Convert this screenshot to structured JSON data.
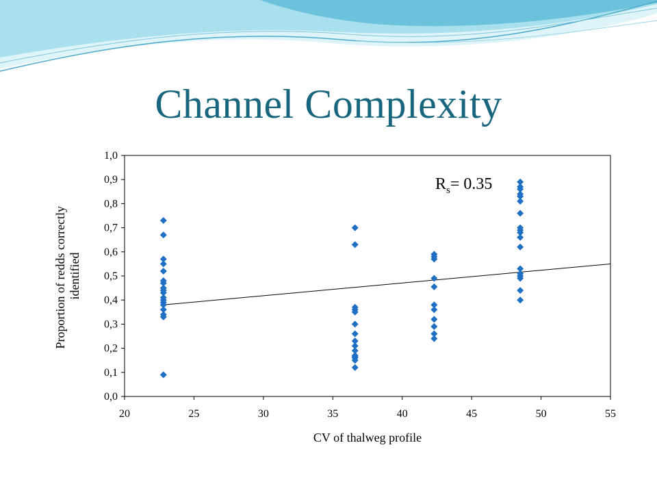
{
  "slide": {
    "title": "Channel Complexity"
  },
  "colors": {
    "title": "#17667e",
    "marker": "#1f6fc5",
    "wave_light": "#cfeef5",
    "wave_mid": "#8fd3e6",
    "wave_dark": "#4aa9c9"
  },
  "chart_data": {
    "type": "scatter",
    "xlabel": "CV of thalweg profile",
    "ylabel": "Proportion of redds correctly identified",
    "xlim": [
      20,
      55
    ],
    "ylim": [
      0,
      1
    ],
    "x_ticks": [
      "20",
      "25",
      "30",
      "35",
      "40",
      "45",
      "50",
      "55"
    ],
    "y_ticks": [
      "0,0",
      "0,1",
      "0,2",
      "0,3",
      "0,4",
      "0,5",
      "0,6",
      "0,7",
      "0,8",
      "0,9",
      "1,0"
    ],
    "grid": false,
    "legend": "none",
    "annotation": {
      "main": "R",
      "subscript": "s",
      "rest": "= 0.35"
    },
    "trendline": {
      "x": [
        22.8,
        55
      ],
      "y": [
        0.38,
        0.55
      ]
    },
    "points": [
      {
        "x": 22.8,
        "y": 0.73
      },
      {
        "x": 22.8,
        "y": 0.67
      },
      {
        "x": 22.8,
        "y": 0.57
      },
      {
        "x": 22.8,
        "y": 0.55
      },
      {
        "x": 22.8,
        "y": 0.52
      },
      {
        "x": 22.8,
        "y": 0.48
      },
      {
        "x": 22.8,
        "y": 0.47
      },
      {
        "x": 22.8,
        "y": 0.45
      },
      {
        "x": 22.8,
        "y": 0.44
      },
      {
        "x": 22.8,
        "y": 0.43
      },
      {
        "x": 22.8,
        "y": 0.41
      },
      {
        "x": 22.8,
        "y": 0.4
      },
      {
        "x": 22.8,
        "y": 0.39
      },
      {
        "x": 22.8,
        "y": 0.38
      },
      {
        "x": 22.8,
        "y": 0.36
      },
      {
        "x": 22.8,
        "y": 0.34
      },
      {
        "x": 22.8,
        "y": 0.33
      },
      {
        "x": 22.8,
        "y": 0.09
      },
      {
        "x": 36.6,
        "y": 0.7
      },
      {
        "x": 36.6,
        "y": 0.63
      },
      {
        "x": 36.6,
        "y": 0.37
      },
      {
        "x": 36.6,
        "y": 0.36
      },
      {
        "x": 36.6,
        "y": 0.35
      },
      {
        "x": 36.6,
        "y": 0.3
      },
      {
        "x": 36.6,
        "y": 0.26
      },
      {
        "x": 36.6,
        "y": 0.23
      },
      {
        "x": 36.6,
        "y": 0.21
      },
      {
        "x": 36.6,
        "y": 0.19
      },
      {
        "x": 36.6,
        "y": 0.17
      },
      {
        "x": 36.6,
        "y": 0.165
      },
      {
        "x": 36.6,
        "y": 0.16
      },
      {
        "x": 36.6,
        "y": 0.15
      },
      {
        "x": 36.6,
        "y": 0.12
      },
      {
        "x": 42.3,
        "y": 0.59
      },
      {
        "x": 42.3,
        "y": 0.58
      },
      {
        "x": 42.3,
        "y": 0.57
      },
      {
        "x": 42.3,
        "y": 0.49
      },
      {
        "x": 42.3,
        "y": 0.455
      },
      {
        "x": 42.3,
        "y": 0.38
      },
      {
        "x": 42.3,
        "y": 0.36
      },
      {
        "x": 42.3,
        "y": 0.32
      },
      {
        "x": 42.3,
        "y": 0.29
      },
      {
        "x": 42.3,
        "y": 0.26
      },
      {
        "x": 42.3,
        "y": 0.24
      },
      {
        "x": 48.5,
        "y": 0.89
      },
      {
        "x": 48.5,
        "y": 0.87
      },
      {
        "x": 48.5,
        "y": 0.86
      },
      {
        "x": 48.5,
        "y": 0.84
      },
      {
        "x": 48.5,
        "y": 0.83
      },
      {
        "x": 48.5,
        "y": 0.81
      },
      {
        "x": 48.5,
        "y": 0.76
      },
      {
        "x": 48.5,
        "y": 0.7
      },
      {
        "x": 48.5,
        "y": 0.69
      },
      {
        "x": 48.5,
        "y": 0.68
      },
      {
        "x": 48.5,
        "y": 0.66
      },
      {
        "x": 48.5,
        "y": 0.62
      },
      {
        "x": 48.5,
        "y": 0.53
      },
      {
        "x": 48.5,
        "y": 0.51
      },
      {
        "x": 48.5,
        "y": 0.5
      },
      {
        "x": 48.5,
        "y": 0.49
      },
      {
        "x": 48.5,
        "y": 0.44
      },
      {
        "x": 48.5,
        "y": 0.4
      }
    ]
  }
}
